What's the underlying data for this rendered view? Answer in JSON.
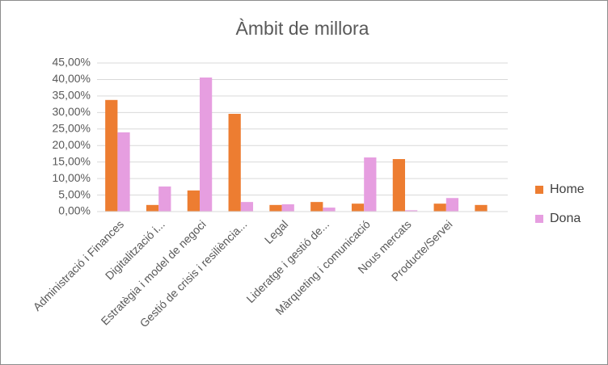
{
  "chart_data": {
    "type": "bar",
    "title": "Àmbit de millora",
    "categories": [
      "Administració i Finances",
      "Digitalització i...",
      "Estratègia i model de negoci",
      "Gestió de crisis i resiliència...",
      "Legal",
      "Lideratge i gestió de...",
      "Màrqueting i comunicació",
      "Nous mercats",
      "Producte/Servei",
      null
    ],
    "series": [
      {
        "name": "Home",
        "color": "#ED7D31",
        "values": [
          33.8,
          2.0,
          6.4,
          29.6,
          2.0,
          2.9,
          2.4,
          15.9,
          2.4,
          2.0
        ]
      },
      {
        "name": "Dona",
        "color": "#E69EE0",
        "values": [
          24.0,
          7.6,
          40.6,
          2.9,
          2.2,
          1.2,
          16.4,
          0.4,
          4.1,
          null
        ]
      }
    ],
    "ylim": [
      0,
      45
    ],
    "yticks": [
      {
        "value": 0,
        "label": "0,00%"
      },
      {
        "value": 5,
        "label": "5,00%"
      },
      {
        "value": 10,
        "label": "10,00%"
      },
      {
        "value": 15,
        "label": "15,00%"
      },
      {
        "value": 20,
        "label": "20,00%"
      },
      {
        "value": 25,
        "label": "25,00%"
      },
      {
        "value": 30,
        "label": "30,00%"
      },
      {
        "value": 35,
        "label": "35,00%"
      },
      {
        "value": 40,
        "label": "40,00%"
      },
      {
        "value": 45,
        "label": "45,00%"
      }
    ],
    "grid": true,
    "legend": "right"
  }
}
